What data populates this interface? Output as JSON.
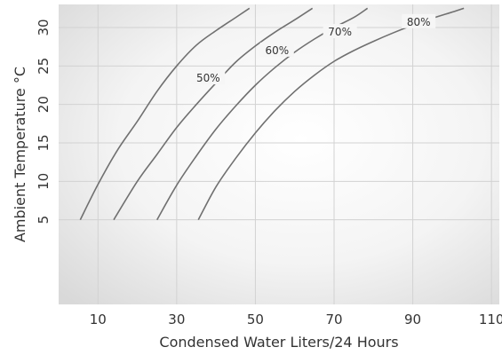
{
  "chart_data": {
    "type": "line",
    "title": "",
    "xlabel": "Condensed Water Liters/24 Hours",
    "ylabel": "Ambient Temperature °C",
    "xlim": [
      0,
      112
    ],
    "ylim": [
      -6,
      33
    ],
    "x_ticks": [
      10,
      30,
      50,
      70,
      90,
      110
    ],
    "y_ticks": [
      5,
      10,
      15,
      20,
      25,
      30
    ],
    "grid": true,
    "series": [
      {
        "name": "50%",
        "color": "#707070",
        "points": [
          [
            5.5,
            5
          ],
          [
            10,
            9.6
          ],
          [
            15,
            14.1
          ],
          [
            20,
            17.8
          ],
          [
            25,
            21.7
          ],
          [
            30,
            25
          ],
          [
            35,
            27.7
          ],
          [
            40,
            29.6
          ],
          [
            45,
            31.3
          ],
          [
            48.5,
            32.5
          ]
        ]
      },
      {
        "name": "60%",
        "color": "#707070",
        "points": [
          [
            14,
            5
          ],
          [
            20,
            10
          ],
          [
            25,
            13.5
          ],
          [
            30,
            17
          ],
          [
            35,
            20
          ],
          [
            40,
            22.8
          ],
          [
            45,
            25.5
          ],
          [
            50,
            27.6
          ],
          [
            55,
            29.4
          ],
          [
            60,
            31
          ],
          [
            64.5,
            32.5
          ]
        ]
      },
      {
        "name": "70%",
        "color": "#707070",
        "points": [
          [
            25,
            5
          ],
          [
            30,
            9.5
          ],
          [
            35,
            13.3
          ],
          [
            40,
            16.8
          ],
          [
            45,
            19.8
          ],
          [
            50,
            22.5
          ],
          [
            55,
            24.8
          ],
          [
            60,
            26.8
          ],
          [
            65,
            28.5
          ],
          [
            70,
            30
          ],
          [
            75,
            31.3
          ],
          [
            78.5,
            32.5
          ]
        ]
      },
      {
        "name": "80%",
        "color": "#707070",
        "points": [
          [
            35.5,
            5
          ],
          [
            40,
            9.3
          ],
          [
            45,
            13
          ],
          [
            50,
            16.3
          ],
          [
            55,
            19.2
          ],
          [
            60,
            21.7
          ],
          [
            65,
            23.8
          ],
          [
            70,
            25.6
          ],
          [
            75,
            27
          ],
          [
            80,
            28.2
          ],
          [
            85,
            29.3
          ],
          [
            90,
            30.3
          ],
          [
            95,
            31.2
          ],
          [
            100,
            32
          ],
          [
            103,
            32.5
          ]
        ]
      }
    ],
    "curve_labels": [
      {
        "text": "50%",
        "x": 38,
        "y": 23.3
      },
      {
        "text": "60%",
        "x": 55.5,
        "y": 26.9
      },
      {
        "text": "70%",
        "x": 71.5,
        "y": 29.3
      },
      {
        "text": "80%",
        "x": 91.5,
        "y": 30.6
      }
    ]
  }
}
